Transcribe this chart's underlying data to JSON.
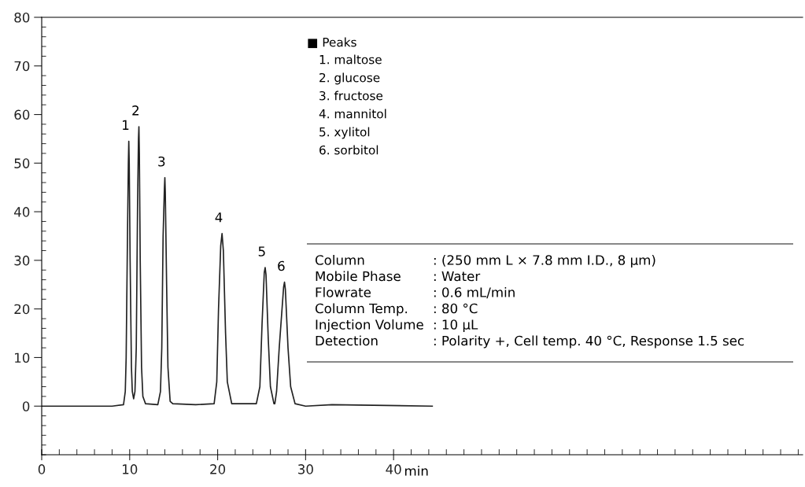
{
  "chart_data": {
    "type": "line",
    "xlabel": "min",
    "series": [
      {
        "color": "#222222",
        "x": [
          0,
          8,
          9.3,
          9.5,
          9.6,
          9.75,
          9.85,
          9.9,
          9.95,
          10.05,
          10.2,
          10.3,
          10.45,
          10.6,
          10.75,
          10.9,
          11.0,
          11.05,
          11.1,
          11.2,
          11.35,
          11.5,
          11.8,
          13.2,
          13.5,
          13.65,
          13.8,
          13.95,
          14.0,
          14.05,
          14.2,
          14.35,
          14.6,
          14.9,
          17.5,
          19.6,
          19.9,
          20.1,
          20.35,
          20.5,
          20.65,
          20.9,
          21.1,
          21.6,
          24.4,
          24.8,
          25.05,
          25.3,
          25.4,
          25.5,
          25.75,
          26.0,
          26.4,
          26.5,
          26.7,
          27.0,
          27.5,
          27.6,
          27.7,
          28.0,
          28.3,
          28.8,
          30,
          33,
          44.4
        ],
        "values": [
          0,
          0,
          0.3,
          3,
          10,
          35,
          50,
          54.5,
          50,
          30,
          8,
          3,
          1.5,
          3,
          12,
          42,
          55,
          57.5,
          52,
          30,
          8,
          2,
          0.5,
          0.3,
          3,
          12,
          35,
          45,
          47,
          44,
          25,
          8,
          1,
          0.5,
          0.3,
          0.5,
          5,
          20,
          33,
          35.5,
          32,
          15,
          5,
          0.5,
          0.5,
          4,
          17,
          27.5,
          28.5,
          27,
          14,
          4,
          0.5,
          0.5,
          3,
          12,
          24.5,
          25.5,
          24,
          12,
          4,
          0.5,
          0,
          0.3,
          0
        ]
      }
    ],
    "xlim": [
      0,
      86.5
    ],
    "ylim": [
      -10,
      80
    ],
    "xticks": [
      0,
      10,
      20,
      30,
      40
    ],
    "yticks": [
      0,
      10,
      20,
      30,
      40,
      50,
      60,
      70,
      80
    ],
    "grid": false,
    "legend": false,
    "marker": "none",
    "line_style": "solid",
    "annotations": [
      {
        "text": "1",
        "x": 9.9,
        "y": 54.5
      },
      {
        "text": "2",
        "x": 11.05,
        "y": 57.5
      },
      {
        "text": "3",
        "x": 14.0,
        "y": 47
      },
      {
        "text": "4",
        "x": 20.5,
        "y": 35.5
      },
      {
        "text": "5",
        "x": 25.4,
        "y": 28.5
      },
      {
        "text": "6",
        "x": 27.6,
        "y": 25.5
      },
      "■ Peaks",
      "1. maltose",
      "2. glucose",
      "3. fructose",
      "4. mannitol",
      "5. xylitol",
      "6. sorbitol",
      "Column",
      ": (250 mm L × 7.8 mm I.D., 8 µm)",
      "Mobile Phase",
      ": Water",
      "Flowrate",
      ": 0.6 mL/min",
      "Column Temp.",
      ": 80 °C",
      "Injection Volume",
      ": 10 µL",
      "Detection",
      ": Polarity +, Cell temp. 40 °C, Response 1.5 sec"
    ]
  }
}
